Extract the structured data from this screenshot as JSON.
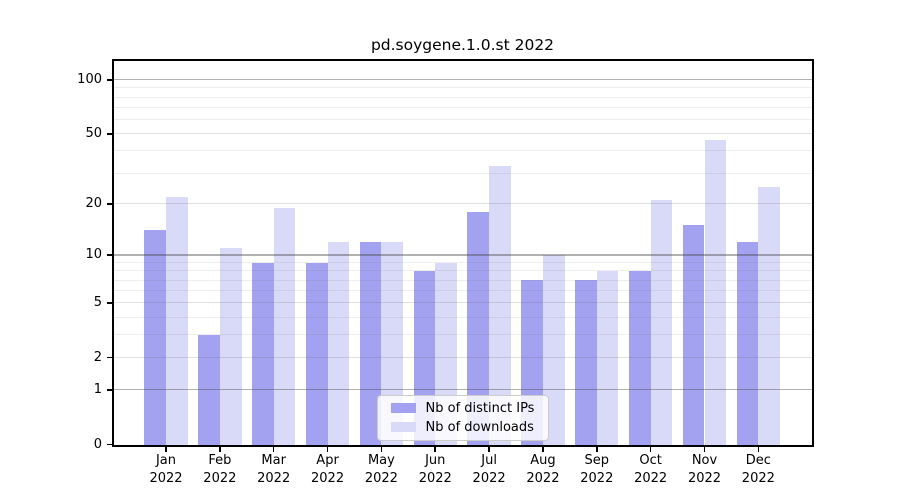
{
  "title": "pd.soygene.1.0.st 2022",
  "chart_data": {
    "type": "bar",
    "title": "pd.soygene.1.0.st 2022",
    "categories": [
      "Jan",
      "Feb",
      "Mar",
      "Apr",
      "May",
      "Jun",
      "Jul",
      "Aug",
      "Sep",
      "Oct",
      "Nov",
      "Dec"
    ],
    "year": "2022",
    "series": [
      {
        "name": "Nb of distinct IPs",
        "color": "#a2a2f0",
        "values": [
          14,
          3,
          9,
          9,
          12,
          8,
          18,
          7,
          7,
          8,
          15,
          12
        ]
      },
      {
        "name": "Nb of downloads",
        "color": "#d9d9f8",
        "values": [
          22,
          11,
          19,
          12,
          12,
          9,
          33,
          10,
          8,
          21,
          46,
          25
        ]
      }
    ],
    "yscale": "log1p",
    "xlabel": "",
    "ylabel": "",
    "y_ticks": [
      0,
      1,
      2,
      5,
      10,
      20,
      50,
      100
    ],
    "ylim": [
      0,
      126
    ],
    "grid": "on",
    "grid_major": [
      1,
      10,
      100
    ],
    "grid_mid": [
      2,
      5,
      20,
      50
    ],
    "grid_minor": [
      3,
      4,
      6,
      7,
      8,
      9,
      30,
      40,
      60,
      70,
      80,
      90
    ],
    "legend": {
      "position": "lower-center",
      "items": [
        "Nb of distinct IPs",
        "Nb of downloads"
      ]
    }
  },
  "colors": {
    "spine": "#000000",
    "text": "#000000",
    "background": "#ffffff",
    "grid_major": "rgba(70,70,70,0.42)",
    "grid_mid": "rgba(100,100,100,0.20)",
    "grid_minor": "rgba(100,100,100,0.11)"
  }
}
